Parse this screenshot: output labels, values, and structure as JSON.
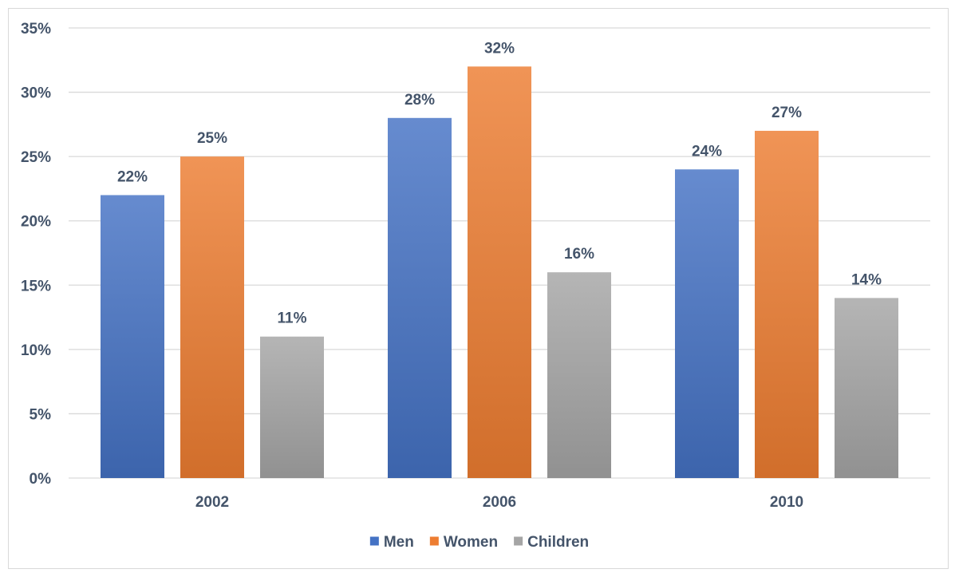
{
  "chart_data": {
    "type": "bar",
    "categories": [
      "2002",
      "2006",
      "2010"
    ],
    "series": [
      {
        "name": "Men",
        "values": [
          22,
          28,
          24
        ],
        "color": "#4472c4"
      },
      {
        "name": "Women",
        "values": [
          25,
          32,
          27
        ],
        "color": "#ed7d31"
      },
      {
        "name": "Children",
        "values": [
          11,
          16,
          14
        ],
        "color": "#a5a5a5"
      }
    ],
    "value_format": "percent",
    "ylim": [
      0,
      35
    ],
    "y_ticks": [
      "0%",
      "5%",
      "10%",
      "15%",
      "20%",
      "25%",
      "30%",
      "35%"
    ],
    "grid": true,
    "legend_position": "bottom",
    "data_labels": true,
    "title": "",
    "xlabel": "",
    "ylabel": ""
  }
}
